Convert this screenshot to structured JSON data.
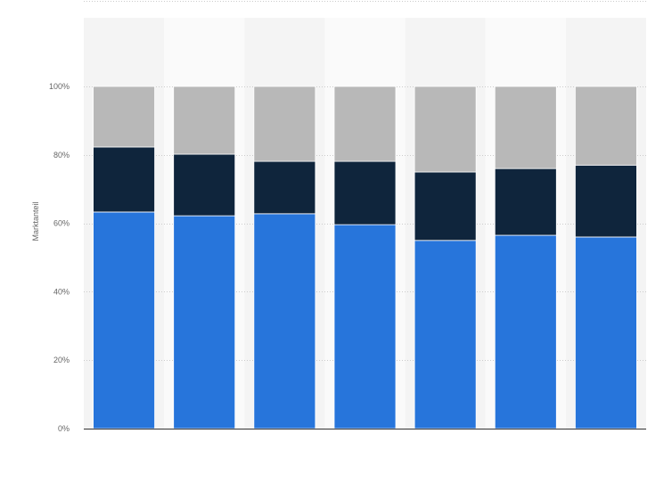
{
  "chart_data": {
    "type": "bar",
    "stacked": true,
    "normalized": true,
    "title": "",
    "xlabel": "",
    "ylabel": "Marktanteil",
    "ylim": [
      0,
      100
    ],
    "yticks": [
      0,
      20,
      40,
      60,
      80,
      100
    ],
    "ytick_suffix": "%",
    "grid": true,
    "legend": "none",
    "categories": [
      "",
      "",
      "",
      "",
      "",
      "",
      ""
    ],
    "series": [
      {
        "color": "#2775db",
        "values": [
          63.3,
          62.2,
          62.8,
          59.6,
          55.0,
          56.5,
          56.0
        ]
      },
      {
        "color": "#0f253c",
        "values": [
          19.0,
          18.0,
          15.3,
          18.5,
          20.0,
          19.5,
          21.0
        ]
      },
      {
        "color": "#b8b8b8",
        "values": [
          17.7,
          19.8,
          21.9,
          21.9,
          25.0,
          24.0,
          23.0
        ]
      }
    ]
  }
}
